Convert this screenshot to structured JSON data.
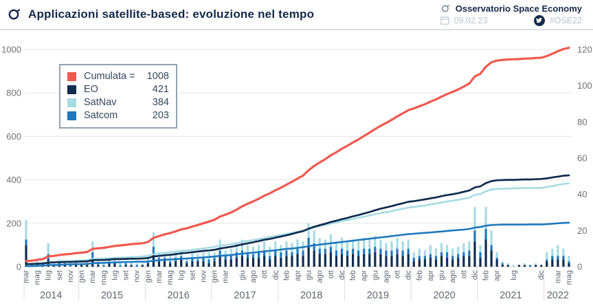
{
  "header": {
    "title": "Applicazioni satellite-based: evoluzione nel tempo",
    "brand": "Osservatorio Space Economy",
    "date": "09.02.23",
    "hashtag": "#OSE22"
  },
  "legend": {
    "items": [
      {
        "label": "Cumulata =",
        "value": "1008",
        "color": "#f0584e"
      },
      {
        "label": "EO",
        "value": "421",
        "color": "#0e2b4d"
      },
      {
        "label": "SatNav",
        "value": "384",
        "color": "#a5dbe3"
      },
      {
        "label": "Satcom",
        "value": "203",
        "color": "#1e78bd"
      }
    ]
  },
  "chart_data": {
    "type": "bar+line",
    "title": "Applicazioni satellite-based: evoluzione nel tempo",
    "x_unit": "month",
    "months": [
      "2014-03",
      "2014-04",
      "2014-05",
      "2014-06",
      "2014-07",
      "2014-08",
      "2014-09",
      "2014-10",
      "2014-11",
      "2014-12",
      "2015-01",
      "2015-02",
      "2015-03",
      "2015-04",
      "2015-05",
      "2015-06",
      "2015-07",
      "2015-08",
      "2015-09",
      "2015-10",
      "2015-11",
      "2015-12",
      "2016-01",
      "2016-02",
      "2016-03",
      "2016-04",
      "2016-05",
      "2016-06",
      "2016-07",
      "2016-08",
      "2016-09",
      "2016-10",
      "2016-11",
      "2016-12",
      "2017-01",
      "2017-02",
      "2017-03",
      "2017-04",
      "2017-05",
      "2017-06",
      "2017-07",
      "2017-08",
      "2017-09",
      "2017-10",
      "2017-11",
      "2017-12",
      "2018-01",
      "2018-02",
      "2018-03",
      "2018-04",
      "2018-05",
      "2018-06",
      "2018-07",
      "2018-08",
      "2018-09",
      "2018-10",
      "2018-11",
      "2018-12",
      "2019-01",
      "2019-02",
      "2019-03",
      "2019-04",
      "2019-05",
      "2019-06",
      "2019-07",
      "2019-08",
      "2019-09",
      "2019-10",
      "2019-11",
      "2019-12",
      "2020-01",
      "2020-02",
      "2020-03",
      "2020-04",
      "2020-05",
      "2020-06",
      "2020-07",
      "2020-08",
      "2020-09",
      "2020-10",
      "2020-11",
      "2020-12",
      "2021-01",
      "2021-02",
      "2021-03",
      "2021-04",
      "2021-05",
      "2021-06",
      "2021-07",
      "2021-08",
      "2021-09",
      "2021-10",
      "2021-11",
      "2021-12",
      "2022-01",
      "2022-02",
      "2022-03",
      "2022-04",
      "2022-05"
    ],
    "series": [
      {
        "name": "EO",
        "color": "#0e2b4d",
        "total": 421,
        "values": [
          12,
          1,
          1,
          1,
          4,
          1,
          1,
          1,
          0,
          1,
          1,
          1,
          5,
          1,
          0,
          2,
          2,
          0,
          1,
          1,
          0,
          1,
          2,
          7,
          3,
          3,
          2,
          3,
          4,
          2,
          3,
          3,
          3,
          2,
          3,
          6,
          4,
          4,
          5,
          6,
          5,
          5,
          5,
          6,
          4,
          6,
          5,
          6,
          6,
          7,
          6,
          11,
          9,
          7,
          7,
          8,
          6,
          7,
          6,
          7,
          6,
          7,
          7,
          8,
          7,
          6,
          6,
          7,
          6,
          7,
          3,
          4,
          4,
          5,
          4,
          6,
          5,
          4,
          5,
          6,
          6,
          14,
          5,
          15,
          9,
          4,
          1,
          1,
          0,
          1,
          1,
          0,
          1,
          1,
          3,
          4,
          4,
          4,
          2
        ]
      },
      {
        "name": "SatNav",
        "color": "#a5dbe3",
        "total": 384,
        "values": [
          11,
          1,
          2,
          1,
          6,
          1,
          2,
          1,
          1,
          2,
          1,
          1,
          6,
          1,
          1,
          1,
          2,
          1,
          1,
          2,
          1,
          1,
          3,
          8,
          3,
          3,
          3,
          3,
          3,
          2,
          3,
          3,
          3,
          4,
          3,
          6,
          3,
          4,
          5,
          6,
          4,
          4,
          4,
          5,
          5,
          5,
          4,
          5,
          5,
          5,
          5,
          8,
          7,
          6,
          5,
          7,
          5,
          6,
          5,
          5,
          5,
          6,
          5,
          6,
          5,
          4,
          5,
          6,
          5,
          5,
          3,
          4,
          3,
          5,
          4,
          5,
          4,
          4,
          4,
          5,
          5,
          13,
          4,
          12,
          8,
          3,
          1,
          1,
          1,
          0,
          1,
          0,
          1,
          0,
          4,
          4,
          6,
          4,
          3
        ]
      },
      {
        "name": "Satcom",
        "color": "#1e78bd",
        "total": 203,
        "values": [
          3,
          0,
          1,
          1,
          3,
          0,
          1,
          1,
          1,
          1,
          0,
          1,
          3,
          1,
          1,
          1,
          1,
          1,
          1,
          0,
          1,
          0,
          1,
          4,
          2,
          2,
          1,
          2,
          2,
          1,
          2,
          1,
          2,
          2,
          2,
          3,
          2,
          2,
          3,
          3,
          3,
          2,
          3,
          3,
          2,
          3,
          3,
          3,
          2,
          3,
          3,
          5,
          4,
          3,
          3,
          3,
          3,
          3,
          3,
          3,
          3,
          3,
          3,
          3,
          3,
          3,
          3,
          3,
          3,
          3,
          2,
          2,
          2,
          2,
          2,
          2,
          3,
          2,
          2,
          2,
          3,
          6,
          3,
          6,
          3,
          1,
          1,
          0,
          0,
          0,
          0,
          1,
          0,
          0,
          1,
          2,
          2,
          2,
          1
        ]
      }
    ],
    "cumulative": {
      "name": "Cumulata",
      "color": "#f0584e",
      "total": 1008
    },
    "stack_order": [
      "EO",
      "Satcom",
      "SatNav"
    ],
    "left_axis": {
      "ticks": [
        0,
        200,
        400,
        600,
        800,
        1000
      ],
      "max": 1000
    },
    "right_axis": {
      "ticks": [
        0,
        20,
        40,
        60,
        80,
        100,
        120
      ],
      "max": 120
    },
    "x_ticks": [
      {
        "i": 0,
        "l": "mar"
      },
      {
        "i": 2,
        "l": "mag"
      },
      {
        "i": 4,
        "l": "lug"
      },
      {
        "i": 6,
        "l": "set"
      },
      {
        "i": 8,
        "l": "nov"
      },
      {
        "i": 10,
        "l": "gen"
      },
      {
        "i": 12,
        "l": "mar"
      },
      {
        "i": 14,
        "l": "mag"
      },
      {
        "i": 16,
        "l": "lug"
      },
      {
        "i": 18,
        "l": "set"
      },
      {
        "i": 20,
        "l": "nov"
      },
      {
        "i": 22,
        "l": "gen"
      },
      {
        "i": 24,
        "l": "mar"
      },
      {
        "i": 26,
        "l": "mag"
      },
      {
        "i": 28,
        "l": "lug"
      },
      {
        "i": 30,
        "l": "set"
      },
      {
        "i": 32,
        "l": "nov"
      },
      {
        "i": 34,
        "l": "gen"
      },
      {
        "i": 36,
        "l": "mar"
      },
      {
        "i": 39,
        "l": "giu"
      },
      {
        "i": 41,
        "l": "ago"
      },
      {
        "i": 43,
        "l": "ott"
      },
      {
        "i": 45,
        "l": "dic"
      },
      {
        "i": 47,
        "l": "feb"
      },
      {
        "i": 49,
        "l": "apr"
      },
      {
        "i": 51,
        "l": "giu"
      },
      {
        "i": 53,
        "l": "ago"
      },
      {
        "i": 55,
        "l": "ott"
      },
      {
        "i": 57,
        "l": "dic"
      },
      {
        "i": 59,
        "l": "feb"
      },
      {
        "i": 61,
        "l": "apr"
      },
      {
        "i": 63,
        "l": "giu"
      },
      {
        "i": 65,
        "l": "ago"
      },
      {
        "i": 67,
        "l": "ott"
      },
      {
        "i": 69,
        "l": "dic"
      },
      {
        "i": 71,
        "l": "feb"
      },
      {
        "i": 73,
        "l": "apr"
      },
      {
        "i": 75,
        "l": "giu"
      },
      {
        "i": 77,
        "l": "ago"
      },
      {
        "i": 79,
        "l": "ott"
      },
      {
        "i": 81,
        "l": "dic"
      },
      {
        "i": 83,
        "l": "feb"
      },
      {
        "i": 85,
        "l": "apr"
      },
      {
        "i": 88,
        "l": "lug"
      },
      {
        "i": 93,
        "l": "dic"
      },
      {
        "i": 96,
        "l": "mar"
      },
      {
        "i": 98,
        "l": "mag"
      }
    ],
    "year_spans": [
      {
        "label": "2014",
        "from": 0,
        "to": 9
      },
      {
        "label": "2015",
        "from": 10,
        "to": 21
      },
      {
        "label": "2016",
        "from": 22,
        "to": 33
      },
      {
        "label": "2017",
        "from": 34,
        "to": 45
      },
      {
        "label": "2018",
        "from": 46,
        "to": 57
      },
      {
        "label": "2019",
        "from": 58,
        "to": 69
      },
      {
        "label": "2020",
        "from": 70,
        "to": 81
      },
      {
        "label": "2021",
        "from": 82,
        "to": 93
      },
      {
        "label": "2022",
        "from": 94,
        "to": 98
      }
    ],
    "grid": "horizontal",
    "legend_position": "upper-left"
  }
}
